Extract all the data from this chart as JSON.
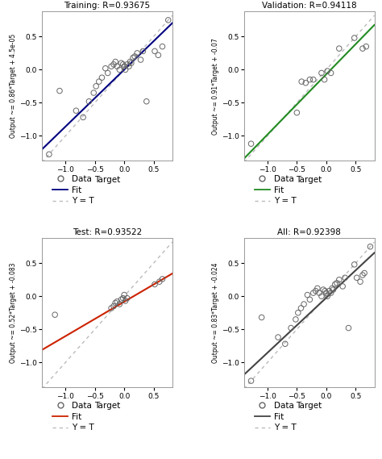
{
  "subplots": [
    {
      "title": "Training: R=0.93675",
      "ylabel": "Output ~= 0.86*Target + 4.5e-05",
      "fit_color": "#000080",
      "slope": 0.86,
      "intercept": 4.5e-05,
      "scatter_x": [
        -1.28,
        -1.1,
        -0.82,
        -0.7,
        -0.6,
        -0.52,
        -0.48,
        -0.43,
        -0.38,
        -0.32,
        -0.28,
        -0.22,
        -0.18,
        -0.15,
        -0.12,
        -0.08,
        -0.05,
        -0.02,
        0.0,
        0.02,
        0.05,
        0.08,
        0.1,
        0.12,
        0.15,
        0.18,
        0.22,
        0.28,
        0.32,
        0.38,
        0.52,
        0.58,
        0.65,
        0.75
      ],
      "scatter_y": [
        -1.28,
        -0.32,
        -0.62,
        -0.72,
        -0.48,
        -0.35,
        -0.25,
        -0.18,
        -0.12,
        0.02,
        -0.05,
        0.05,
        0.08,
        0.12,
        0.05,
        0.0,
        0.1,
        0.08,
        0.05,
        0.0,
        0.08,
        0.05,
        0.12,
        0.1,
        0.18,
        0.2,
        0.25,
        0.15,
        0.28,
        -0.48,
        0.28,
        0.22,
        0.35,
        0.75
      ]
    },
    {
      "title": "Validation: R=0.94118",
      "ylabel": "Output ~= 0.91*Target + -0.07",
      "fit_color": "#228B22",
      "slope": 0.91,
      "intercept": -0.07,
      "scatter_x": [
        -1.28,
        -0.5,
        -0.42,
        -0.35,
        -0.28,
        -0.22,
        -0.08,
        -0.03,
        0.02,
        0.08,
        0.22,
        0.48,
        0.62,
        0.68
      ],
      "scatter_y": [
        -1.12,
        -0.65,
        -0.18,
        -0.2,
        -0.15,
        -0.15,
        -0.05,
        -0.15,
        -0.02,
        -0.05,
        0.32,
        0.48,
        0.32,
        0.35
      ]
    },
    {
      "title": "Test: R=0.93522",
      "ylabel": "Output ~= 0.52*Target + -0.083",
      "fit_color": "#CC2200",
      "slope": 0.52,
      "intercept": -0.083,
      "scatter_x": [
        -1.18,
        -0.22,
        -0.18,
        -0.15,
        -0.12,
        -0.08,
        -0.05,
        -0.02,
        0.0,
        0.02,
        0.05,
        0.52,
        0.6,
        0.65
      ],
      "scatter_y": [
        -0.28,
        -0.18,
        -0.15,
        -0.1,
        -0.08,
        -0.12,
        -0.05,
        -0.03,
        0.02,
        -0.07,
        -0.03,
        0.18,
        0.22,
        0.26
      ]
    },
    {
      "title": "All: R=0.92398",
      "ylabel": "Output ~= 0.83*Target + -0.024",
      "fit_color": "#444444",
      "slope": 0.83,
      "intercept": -0.024,
      "scatter_x": [
        -1.28,
        -1.1,
        -0.82,
        -0.7,
        -0.6,
        -0.52,
        -0.48,
        -0.43,
        -0.38,
        -0.32,
        -0.28,
        -0.22,
        -0.18,
        -0.15,
        -0.12,
        -0.08,
        -0.05,
        -0.02,
        0.0,
        0.02,
        0.05,
        0.08,
        0.1,
        0.12,
        0.15,
        0.18,
        0.22,
        0.28,
        0.32,
        0.38,
        0.48,
        0.52,
        0.58,
        0.62,
        0.65,
        0.75
      ],
      "scatter_y": [
        -1.28,
        -0.32,
        -0.62,
        -0.72,
        -0.48,
        -0.35,
        -0.25,
        -0.18,
        -0.12,
        0.02,
        -0.05,
        0.05,
        0.08,
        0.12,
        0.05,
        0.0,
        0.1,
        0.08,
        0.05,
        0.0,
        0.08,
        0.05,
        0.12,
        0.1,
        0.18,
        0.2,
        0.25,
        0.15,
        0.28,
        -0.48,
        0.48,
        0.28,
        0.22,
        0.32,
        0.35,
        0.75
      ]
    }
  ],
  "xlabel": "Target",
  "xlim": [
    -1.4,
    0.82
  ],
  "ylim": [
    -1.38,
    0.88
  ],
  "xticks": [
    -1.0,
    -0.5,
    0.0,
    0.5
  ],
  "yticks": [
    -1.0,
    -0.5,
    0.0,
    0.5
  ],
  "dot_line_color": "#BBBBBB",
  "background_color": "#FFFFFF",
  "scatter_edgecolor": "#666666",
  "scatter_size": 22,
  "legend_fontsize": 7.5
}
